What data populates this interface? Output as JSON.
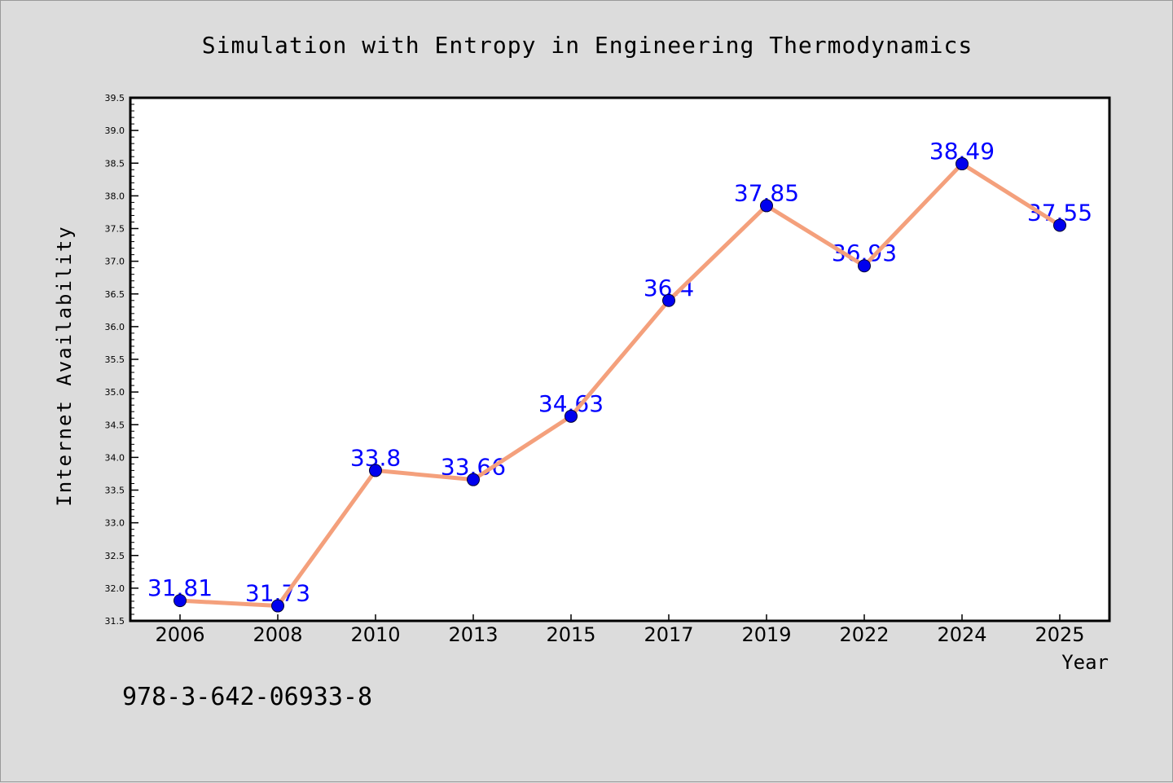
{
  "chart_data": {
    "type": "line",
    "title": "Simulation with Entropy in Engineering Thermodynamics",
    "xlabel": "Year",
    "ylabel": "Internet Availability",
    "categories": [
      "2006",
      "2008",
      "2010",
      "2013",
      "2015",
      "2017",
      "2019",
      "2022",
      "2024",
      "2025"
    ],
    "series": [
      {
        "values": [
          31.81,
          31.73,
          33.8,
          33.66,
          34.63,
          36.4,
          37.85,
          36.93,
          38.49,
          37.55
        ],
        "labels": [
          "31.81",
          "31.73",
          "33.8",
          "33.66",
          "34.63",
          "36.4",
          "37.85",
          "36.93",
          "38.49",
          "37.55"
        ],
        "line_color": "#f4a07c",
        "marker_color": "#0000ee",
        "label_color": "#0000ff"
      }
    ],
    "ylim": [
      31.5,
      39.5
    ],
    "y_ticks": [
      "31.5",
      "32.0",
      "32.5",
      "33.0",
      "33.5",
      "34.0",
      "34.5",
      "35.0",
      "35.5",
      "36.0",
      "36.5",
      "37.0",
      "37.5",
      "38.0",
      "38.5",
      "39.0",
      "39.5"
    ],
    "grid": false,
    "legend": "none"
  },
  "footer_text": "978-3-642-06933-8"
}
